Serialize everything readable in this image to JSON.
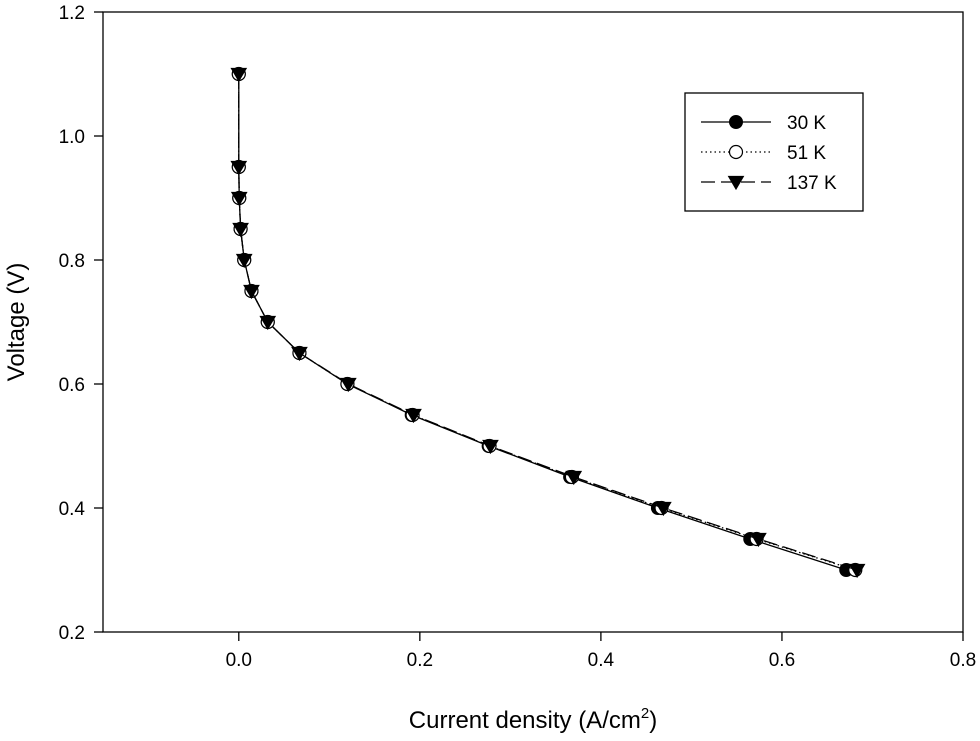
{
  "chart_data": {
    "type": "line",
    "title": "",
    "xlabel": "Current density (A/cm",
    "xlabel_sup": "2",
    "xlabel_tail": ")",
    "ylabel": "Voltage (V)",
    "xlim": [
      -0.15,
      0.8
    ],
    "ylim": [
      0.2,
      1.2
    ],
    "xticks": [
      0.0,
      0.2,
      0.4,
      0.6,
      0.8
    ],
    "xtick_labels": [
      "0.0",
      "0.2",
      "0.4",
      "0.6",
      "0.8"
    ],
    "yticks": [
      0.2,
      0.4,
      0.6,
      0.8,
      1.0,
      1.2
    ],
    "ytick_labels": [
      "0.2",
      "0.4",
      "0.6",
      "0.8",
      "1.0",
      "1.2"
    ],
    "grid": false,
    "legend_position": "top-right",
    "series": [
      {
        "name": "30 K",
        "marker": "filled-circle",
        "line": "solid",
        "x": [
          0.0,
          0.0,
          0.0005,
          0.002,
          0.006,
          0.014,
          0.032,
          0.067,
          0.12,
          0.191,
          0.276,
          0.366,
          0.463,
          0.565,
          0.671
        ],
        "y": [
          1.1,
          0.95,
          0.9,
          0.85,
          0.8,
          0.75,
          0.7,
          0.65,
          0.6,
          0.55,
          0.5,
          0.45,
          0.4,
          0.35,
          0.3
        ]
      },
      {
        "name": "51 K",
        "marker": "open-circle",
        "line": "dotted",
        "x": [
          0.0,
          0.0,
          0.0005,
          0.002,
          0.006,
          0.014,
          0.032,
          0.067,
          0.12,
          0.192,
          0.277,
          0.368,
          0.467,
          0.572,
          0.681
        ],
        "y": [
          1.1,
          0.95,
          0.9,
          0.85,
          0.8,
          0.75,
          0.7,
          0.65,
          0.6,
          0.55,
          0.5,
          0.45,
          0.4,
          0.35,
          0.3
        ]
      },
      {
        "name": "137 K",
        "marker": "filled-triangle-down",
        "line": "dashed",
        "x": [
          0.0,
          0.0,
          0.0005,
          0.002,
          0.006,
          0.014,
          0.032,
          0.067,
          0.121,
          0.193,
          0.278,
          0.37,
          0.469,
          0.574,
          0.683
        ],
        "y": [
          1.1,
          0.95,
          0.9,
          0.85,
          0.8,
          0.75,
          0.7,
          0.65,
          0.6,
          0.55,
          0.5,
          0.45,
          0.4,
          0.35,
          0.3
        ]
      }
    ]
  }
}
